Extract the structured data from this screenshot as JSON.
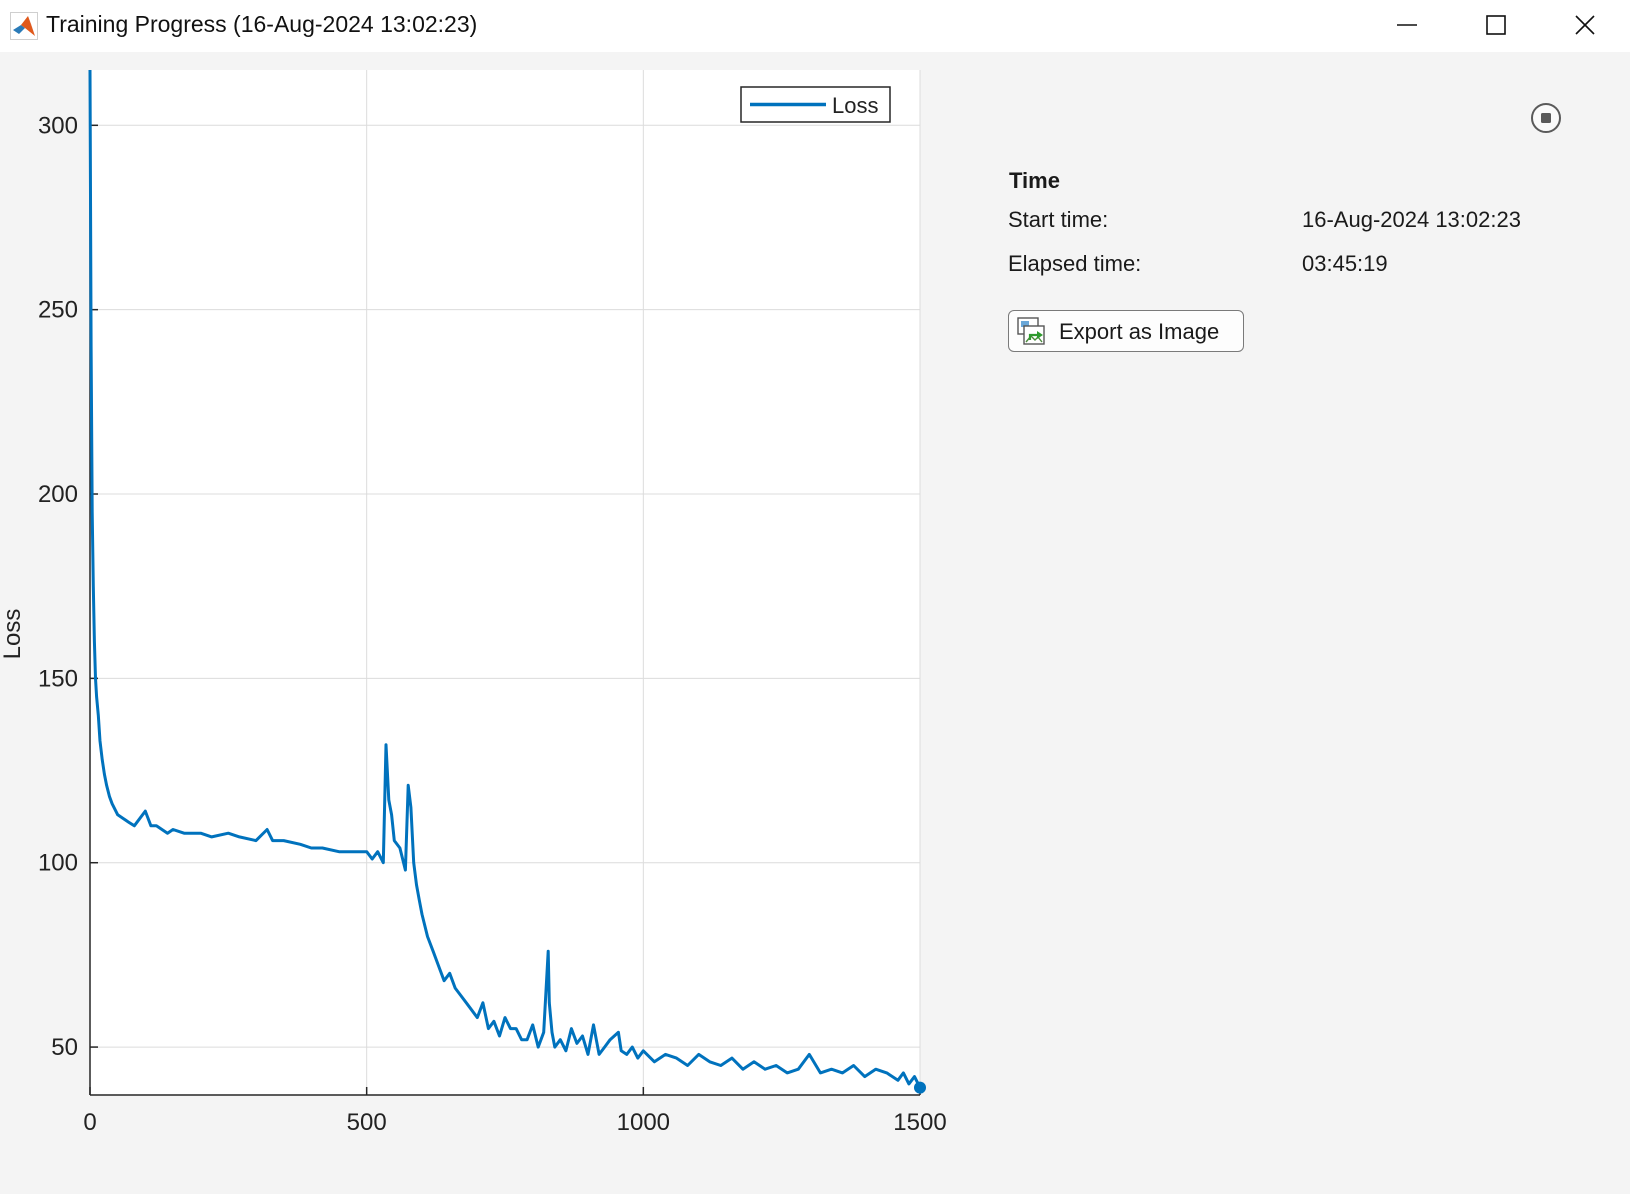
{
  "window": {
    "title": "Training Progress (16-Aug-2024 13:02:23)",
    "controls": [
      "minimize-icon",
      "maximize-icon",
      "close-icon"
    ]
  },
  "panel": {
    "section_title": "Time",
    "start_label": "Start time:",
    "start_value": "16-Aug-2024 13:02:23",
    "elapsed_label": "Elapsed time:",
    "elapsed_value": "03:45:19",
    "export_label": "Export as Image",
    "stop_icon": "stop-icon",
    "export_icon": "export-image-icon"
  },
  "chart_data": {
    "type": "line",
    "title": "",
    "xlabel": "",
    "ylabel": "Loss",
    "xlim": [
      0,
      1500
    ],
    "ylim": [
      37,
      315
    ],
    "xticks": [
      0,
      500,
      1000,
      1500
    ],
    "yticks": [
      50,
      100,
      150,
      200,
      250,
      300
    ],
    "grid": true,
    "legend": "top-right",
    "series": [
      {
        "name": "Loss",
        "color": "#0072bd",
        "x": [
          0,
          2,
          4,
          6,
          8,
          10,
          12,
          15,
          18,
          22,
          26,
          30,
          35,
          40,
          50,
          60,
          70,
          80,
          100,
          110,
          120,
          140,
          150,
          170,
          200,
          220,
          250,
          270,
          300,
          320,
          330,
          350,
          380,
          400,
          420,
          450,
          480,
          500,
          510,
          520,
          530,
          535,
          540,
          545,
          550,
          560,
          570,
          575,
          580,
          585,
          590,
          595,
          600,
          610,
          620,
          630,
          640,
          650,
          660,
          670,
          680,
          690,
          700,
          710,
          720,
          730,
          740,
          750,
          760,
          770,
          780,
          790,
          800,
          810,
          820,
          828,
          830,
          835,
          840,
          850,
          860,
          870,
          880,
          890,
          900,
          910,
          920,
          930,
          940,
          955,
          960,
          970,
          980,
          990,
          1000,
          1020,
          1040,
          1060,
          1080,
          1100,
          1120,
          1140,
          1160,
          1180,
          1200,
          1220,
          1240,
          1260,
          1280,
          1300,
          1320,
          1340,
          1360,
          1380,
          1400,
          1420,
          1440,
          1460,
          1470,
          1480,
          1490,
          1500
        ],
        "values": [
          315,
          240,
          195,
          175,
          160,
          150,
          145,
          140,
          133,
          128,
          124,
          121,
          118,
          116,
          113,
          112,
          111,
          110,
          114,
          110,
          110,
          108,
          109,
          108,
          108,
          107,
          108,
          107,
          106,
          109,
          106,
          106,
          105,
          104,
          104,
          103,
          103,
          103,
          101,
          103,
          100,
          132,
          117,
          113,
          106,
          104,
          98,
          121,
          115,
          100,
          94,
          90,
          86,
          80,
          76,
          72,
          68,
          70,
          66,
          64,
          62,
          60,
          58,
          62,
          55,
          57,
          53,
          58,
          55,
          55,
          52,
          52,
          56,
          50,
          54,
          76,
          62,
          54,
          50,
          52,
          49,
          55,
          51,
          53,
          48,
          56,
          48,
          50,
          52,
          54,
          49,
          48,
          50,
          47,
          49,
          46,
          48,
          47,
          45,
          48,
          46,
          45,
          47,
          44,
          46,
          44,
          45,
          43,
          44,
          48,
          43,
          44,
          43,
          45,
          42,
          44,
          43,
          41,
          43,
          40,
          42,
          39
        ]
      }
    ]
  }
}
